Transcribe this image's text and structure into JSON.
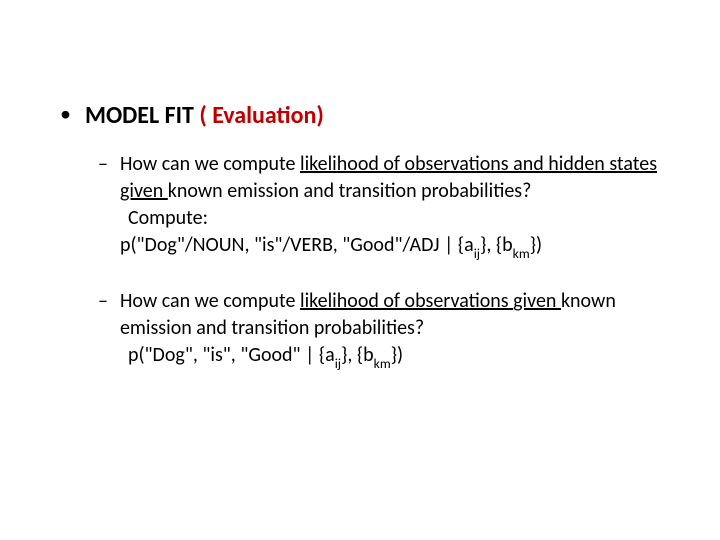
{
  "colors": {
    "background": "#ffffff",
    "text": "#000000",
    "accent_red": "#c00000"
  },
  "typography": {
    "l1_fontsize": 24,
    "l1_weight": "bold",
    "l2_fontsize": 20,
    "sub_scale": 0.68
  },
  "bullets": {
    "l1_char": "•",
    "l2_char": "–"
  },
  "l1_title": {
    "pre": "MODEL FIT ",
    "red": "( Evaluation)"
  },
  "item1": {
    "q_a": "How can we compute ",
    "q_b_ul": "likelihood of observations and hidden states ",
    "q_c_ul": "given ",
    "q_d": "known emission and transition probabilities?",
    "compute": "Compute:",
    "f_a": "p(\"Dog\"/NOUN, \"is\"/VERB, \"Good\"/ADJ | {a",
    "f_ij": "ij",
    "f_b": "}, {b",
    "f_km": "km",
    "f_c": "})"
  },
  "item2": {
    "q_a": "How can we compute ",
    "q_b_ul": "likelihood of observations ",
    "q_c_ul": "given ",
    "q_d": "known emission and transition probabilities?",
    "f_a": "p(\"Dog\", \"is\", \"Good\" | {a",
    "f_ij": "ij",
    "f_b": "}, {b",
    "f_km": "km",
    "f_c": "})"
  }
}
